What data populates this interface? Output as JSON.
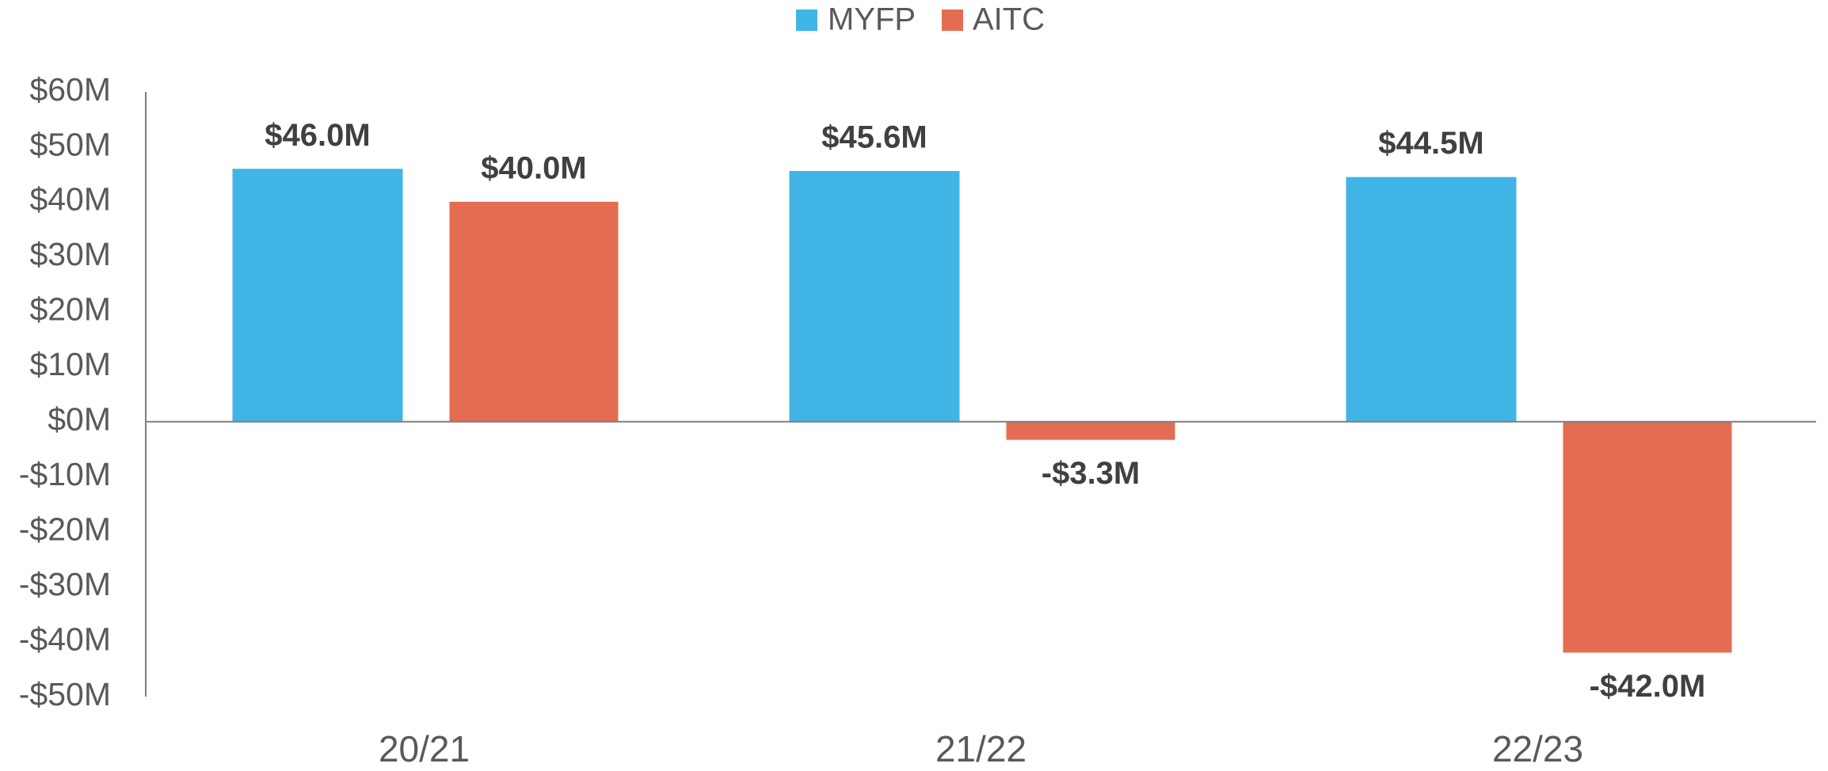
{
  "chart_data": {
    "type": "bar",
    "categories": [
      "20/21",
      "21/22",
      "22/23"
    ],
    "series": [
      {
        "name": "MYFP",
        "color": "#41b4e6",
        "values": [
          46.0,
          45.6,
          44.5
        ],
        "value_labels": [
          "$46.0M",
          "$45.6M",
          "$44.5M"
        ]
      },
      {
        "name": "AITC",
        "color": "#e46c52",
        "values": [
          40.0,
          -3.3,
          -42.0
        ],
        "value_labels": [
          "$40.0M",
          "-$3.3M",
          "-$42.0M"
        ]
      }
    ],
    "ylim": [
      -50,
      60
    ],
    "yticks": [
      {
        "value": -50,
        "label": "-$50M"
      },
      {
        "value": -40,
        "label": "-$40M"
      },
      {
        "value": -30,
        "label": "-$30M"
      },
      {
        "value": -20,
        "label": "-$20M"
      },
      {
        "value": -10,
        "label": "-$10M"
      },
      {
        "value": 0,
        "label": "$0M"
      },
      {
        "value": 10,
        "label": "$10M"
      },
      {
        "value": 20,
        "label": "$20M"
      },
      {
        "value": 30,
        "label": "$30M"
      },
      {
        "value": 40,
        "label": "$40M"
      },
      {
        "value": 50,
        "label": "$50M"
      },
      {
        "value": 60,
        "label": "$60M"
      }
    ],
    "legend": "top",
    "grid": false
  }
}
